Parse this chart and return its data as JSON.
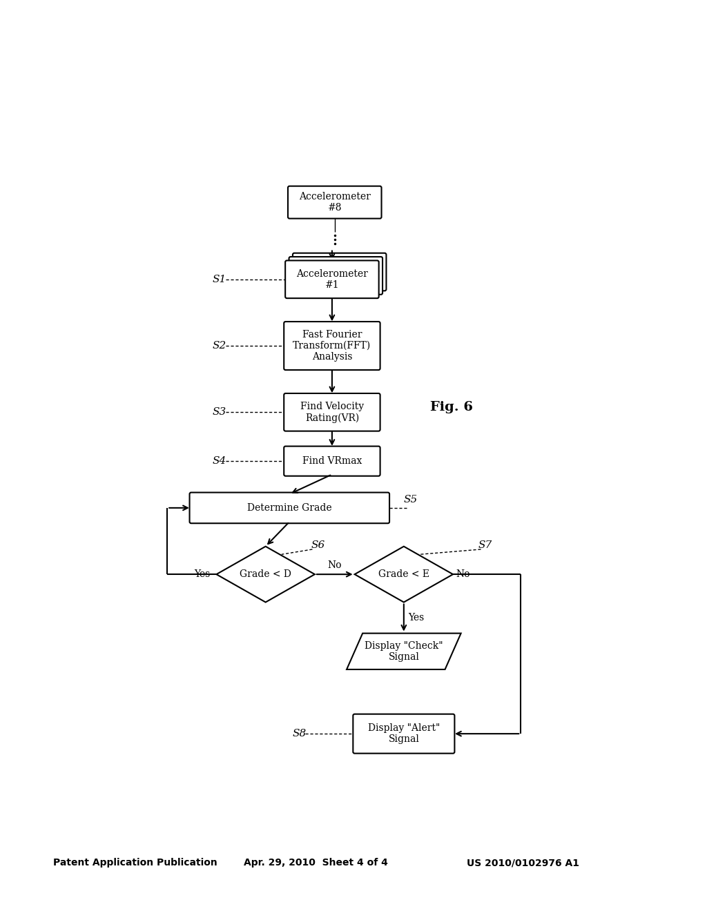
{
  "bg_color": "#ffffff",
  "header_left": "Patent Application Publication",
  "header_mid": "Apr. 29, 2010  Sheet 4 of 4",
  "header_right": "US 2010/0102976 A1",
  "fig_label": "Fig. 6"
}
